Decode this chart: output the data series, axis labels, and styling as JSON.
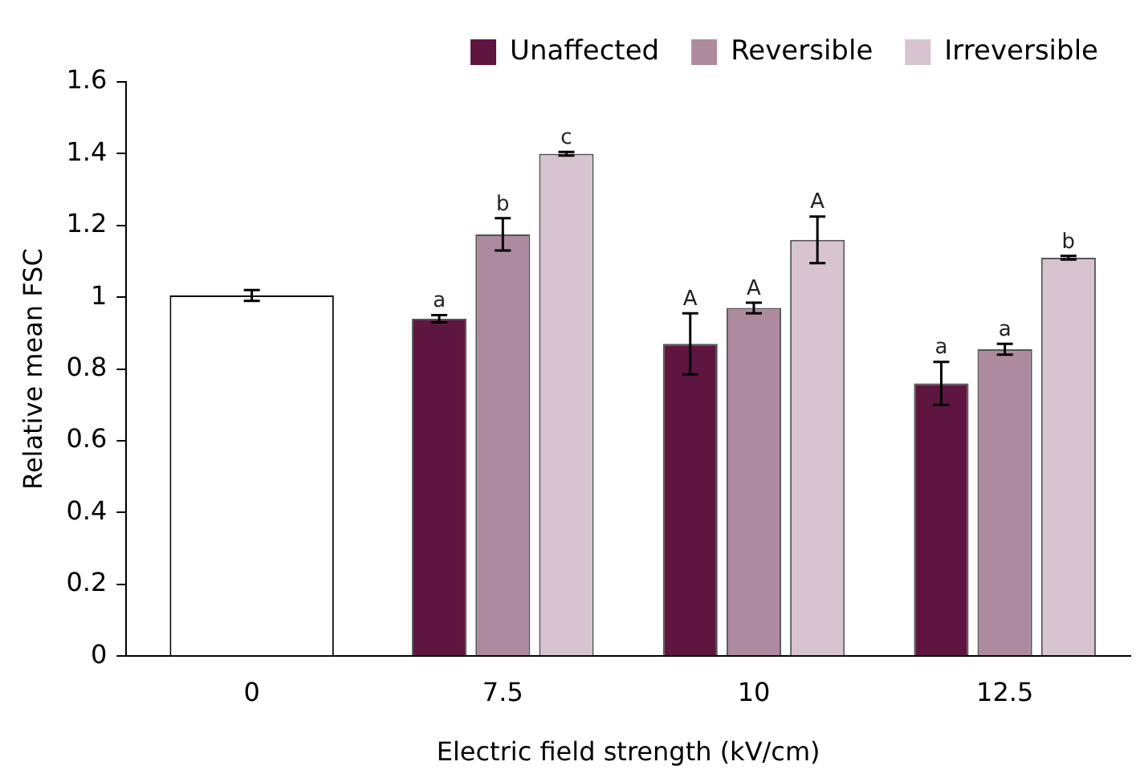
{
  "chart_data": {
    "type": "bar",
    "xlabel": "Electric field strength (kV/cm)",
    "ylabel": "Relative mean FSC",
    "categories": [
      "0",
      "7.5",
      "10",
      "12.5"
    ],
    "series": [
      {
        "color": "#ffffff",
        "values": [
          1.005,
          null,
          null,
          null
        ],
        "errors": [
          0.015,
          null,
          null,
          null
        ],
        "value_labels": [
          null,
          null,
          null,
          null
        ]
      },
      {
        "name": "Unaffected",
        "color": "#5e1540",
        "values": [
          null,
          0.94,
          0.87,
          0.76
        ],
        "errors": [
          null,
          0.01,
          0.085,
          0.06
        ],
        "value_labels": [
          null,
          "a",
          "A",
          "a"
        ]
      },
      {
        "name": "Reversible",
        "color": "#ae8a9f",
        "values": [
          null,
          1.175,
          0.97,
          0.855
        ],
        "errors": [
          null,
          0.045,
          0.015,
          0.015
        ],
        "value_labels": [
          null,
          "b",
          "A",
          "a"
        ]
      },
      {
        "name": "Irreversible",
        "color": "#d8c4d0",
        "values": [
          null,
          1.4,
          1.16,
          1.11
        ],
        "errors": [
          null,
          0.005,
          0.065,
          0.005
        ],
        "value_labels": [
          null,
          "c",
          "A",
          "b"
        ]
      }
    ],
    "ylim": [
      0,
      1.6
    ],
    "yticks": [
      0,
      0.2,
      0.4,
      0.6,
      0.8,
      1,
      1.2,
      1.4,
      1.6
    ],
    "grid": false,
    "legend": "top right"
  }
}
